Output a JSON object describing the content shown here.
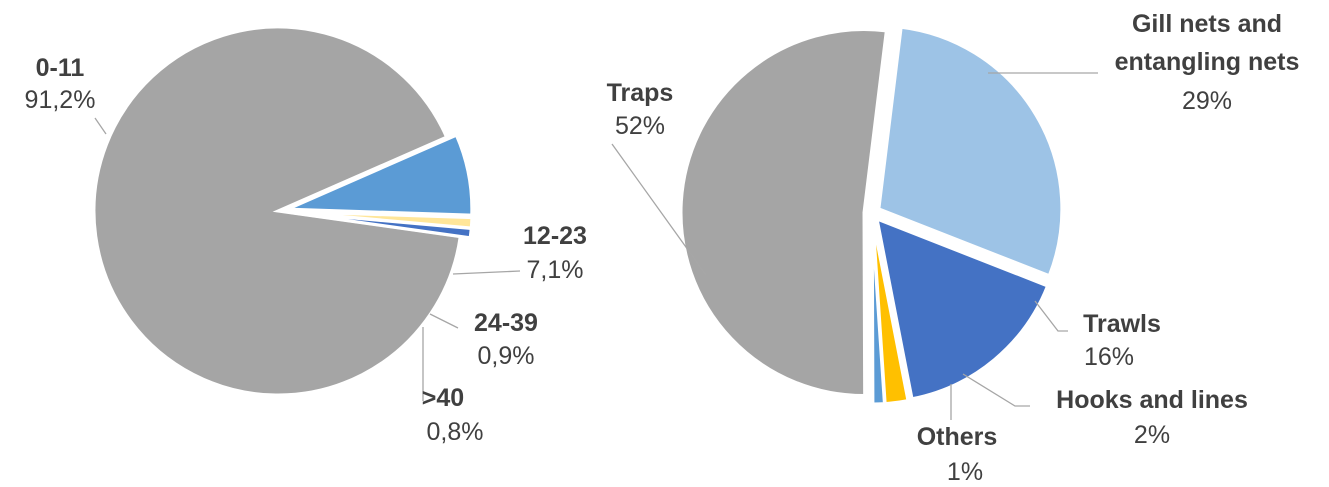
{
  "chart_data": [
    {
      "type": "pie",
      "title": "",
      "slices": [
        {
          "label": "0-11",
          "value_label": "91,2%",
          "value": 91.2,
          "color": "#a5a5a5"
        },
        {
          "label": "12-23",
          "value_label": "7,1%",
          "value": 7.1,
          "color": "#5b9bd5"
        },
        {
          "label": "24-39",
          "value_label": "0,9%",
          "value": 0.9,
          "color": "#ffe699"
        },
        {
          "label": ">40",
          "value_label": "0,8%",
          "value": 0.8,
          "color": "#4472c4"
        }
      ]
    },
    {
      "type": "pie",
      "title": "",
      "slices": [
        {
          "label": "Gill nets and entangling nets",
          "value_label": "29%",
          "value": 29,
          "color": "#9dc3e6"
        },
        {
          "label": "Trawls",
          "value_label": "16%",
          "value": 16,
          "color": "#4472c4"
        },
        {
          "label": "Hooks and lines",
          "value_label": "2%",
          "value": 2,
          "color": "#ffc000"
        },
        {
          "label": "Others",
          "value_label": "1%",
          "value": 1,
          "color": "#5b9bd5"
        },
        {
          "label": "Traps",
          "value_label": "52%",
          "value": 52,
          "color": "#a5a5a5"
        }
      ]
    }
  ]
}
